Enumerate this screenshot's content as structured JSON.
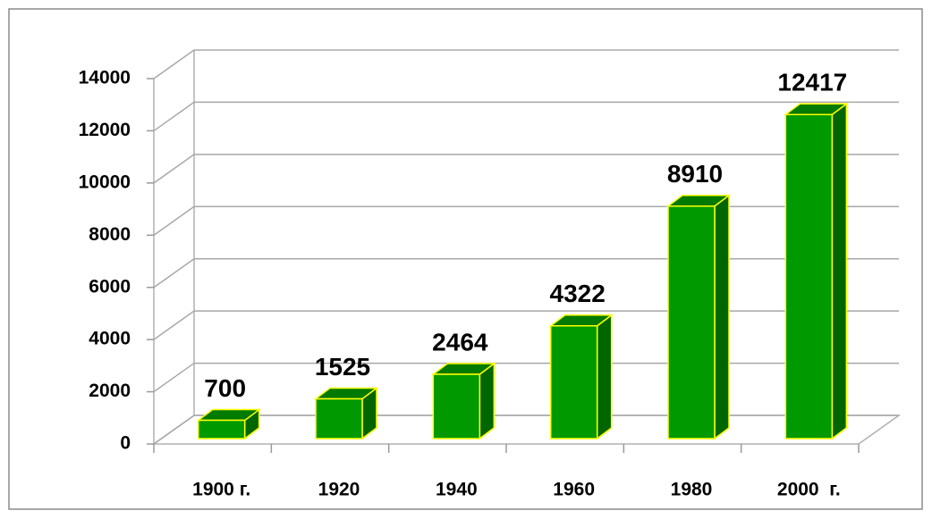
{
  "chart_data": {
    "type": "bar3d",
    "categories": [
      "1900 г.",
      "1920",
      "1940",
      "1960",
      "1980",
      "2000  г."
    ],
    "values": [
      700,
      1525,
      2464,
      4322,
      8910,
      12417
    ],
    "color": "#009900",
    "side_color": "#006600",
    "top_color": "#007a00",
    "edge_color": "#ffff00",
    "ylim": [
      0,
      14000
    ],
    "yticks": [
      0,
      2000,
      4000,
      6000,
      8000,
      10000,
      12000,
      14000
    ],
    "grid": true
  }
}
